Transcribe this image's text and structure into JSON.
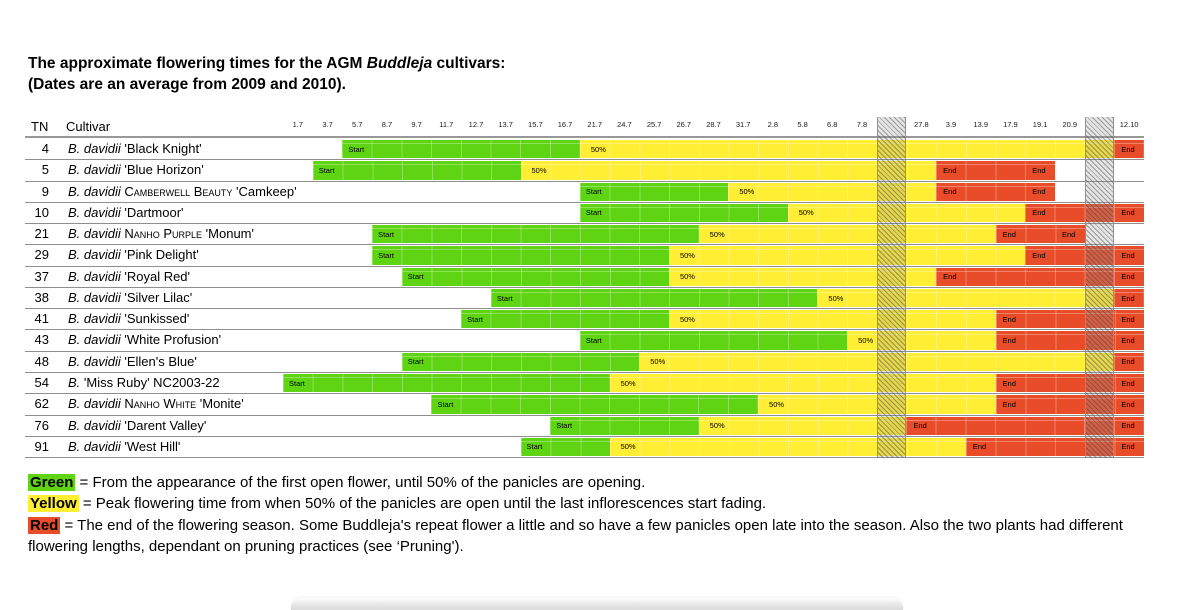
{
  "title": {
    "prefix": "The approximate flowering times for the AGM ",
    "italic": "Buddleja",
    "suffix": " cultivars:",
    "line2": "(Dates are an average from 2009 and 2010)."
  },
  "table_headers": {
    "tn": "TN",
    "cultivar": "Cultivar"
  },
  "colors": {
    "green": "#5ed413",
    "yellow": "#ffee33",
    "red": "#e84c28",
    "grid_line": "#8e8e8e"
  },
  "chart_data": {
    "type": "gantt",
    "title": "The approximate flowering times for the AGM Buddleja cultivars (dates are an average from 2009 and 2010)",
    "x_axis_note": "column dates in day.month format, July to October",
    "columns": [
      "1.7",
      "3.7",
      "5.7",
      "8.7",
      "9.7",
      "11.7",
      "12.7",
      "13.7",
      "15.7",
      "16.7",
      "21.7",
      "24.7",
      "25.7",
      "26.7",
      "28.7",
      "31.7",
      "2.8",
      "5.8",
      "6.8",
      "7.8",
      "",
      "27.8",
      "3.9",
      "13.9",
      "17.9",
      "19.1",
      "20.9",
      "",
      "12.10"
    ],
    "hatch_cols": [
      20,
      27
    ],
    "bar_labels": {
      "start": "Start",
      "half": "50%",
      "end": "End"
    },
    "phases": [
      "green: first open flower to 50% panicles",
      "yellow: peak flowering",
      "red: end of season"
    ],
    "rows": [
      {
        "tn": "4",
        "parts": [
          [
            "B. davidii",
            "i"
          ],
          [
            " 'Black Knight'",
            "n"
          ]
        ],
        "green": [
          2,
          10
        ],
        "yellow": [
          10,
          28
        ],
        "red": [
          28,
          29
        ],
        "end_labels": [
          28
        ]
      },
      {
        "tn": "5",
        "parts": [
          [
            "B. davidii",
            "i"
          ],
          [
            " 'Blue Horizon'",
            "n"
          ]
        ],
        "green": [
          1,
          8
        ],
        "yellow": [
          8,
          22
        ],
        "red": [
          22,
          26
        ],
        "end_labels": [
          22,
          25
        ]
      },
      {
        "tn": "9",
        "parts": [
          [
            "B. davidii",
            "i"
          ],
          [
            " ",
            "n"
          ],
          [
            "Camberwell Beauty",
            "sc"
          ],
          [
            " 'Camkeep'",
            "n"
          ]
        ],
        "green": [
          10,
          15
        ],
        "yellow": [
          15,
          22
        ],
        "red": [
          22,
          26
        ],
        "end_labels": [
          22,
          25
        ]
      },
      {
        "tn": "10",
        "parts": [
          [
            "B. davidii",
            "i"
          ],
          [
            " 'Dartmoor'",
            "n"
          ]
        ],
        "green": [
          10,
          17
        ],
        "yellow": [
          17,
          25
        ],
        "red": [
          25,
          29
        ],
        "end_labels": [
          25,
          28
        ]
      },
      {
        "tn": "21",
        "parts": [
          [
            "B. davidii",
            "i"
          ],
          [
            " ",
            "n"
          ],
          [
            "Nanho Purple",
            "sc"
          ],
          [
            " 'Monum'",
            "n"
          ]
        ],
        "green": [
          3,
          14
        ],
        "yellow": [
          14,
          24
        ],
        "red": [
          24,
          27
        ],
        "end_labels": [
          24,
          26
        ]
      },
      {
        "tn": "29",
        "parts": [
          [
            "B. davidii",
            "i"
          ],
          [
            " 'Pink Delight'",
            "n"
          ]
        ],
        "green": [
          3,
          13
        ],
        "yellow": [
          13,
          25
        ],
        "red": [
          25,
          29
        ],
        "end_labels": [
          25,
          28
        ]
      },
      {
        "tn": "37",
        "parts": [
          [
            "B. davidii",
            "i"
          ],
          [
            " 'Royal Red'",
            "n"
          ]
        ],
        "green": [
          4,
          13
        ],
        "yellow": [
          13,
          22
        ],
        "red": [
          22,
          29
        ],
        "end_labels": [
          22,
          28
        ]
      },
      {
        "tn": "38",
        "parts": [
          [
            "B. davidii",
            "i"
          ],
          [
            " 'Silver Lilac'",
            "n"
          ]
        ],
        "green": [
          7,
          18
        ],
        "yellow": [
          18,
          28
        ],
        "red": [
          28,
          29
        ],
        "end_labels": [
          28
        ]
      },
      {
        "tn": "41",
        "parts": [
          [
            "B. davidii",
            "i"
          ],
          [
            " 'Sunkissed'",
            "n"
          ]
        ],
        "green": [
          6,
          13
        ],
        "yellow": [
          13,
          24
        ],
        "red": [
          24,
          29
        ],
        "end_labels": [
          24,
          28
        ]
      },
      {
        "tn": "43",
        "parts": [
          [
            "B. davidii",
            "i"
          ],
          [
            " 'White Profusion'",
            "n"
          ]
        ],
        "green": [
          10,
          19
        ],
        "yellow": [
          19,
          24
        ],
        "red": [
          24,
          29
        ],
        "end_labels": [
          24,
          28
        ]
      },
      {
        "tn": "48",
        "parts": [
          [
            "B. davidii",
            "i"
          ],
          [
            " 'Ellen's Blue'",
            "n"
          ]
        ],
        "green": [
          4,
          12
        ],
        "yellow": [
          12,
          28
        ],
        "red": [
          28,
          29
        ],
        "end_labels": [
          28
        ]
      },
      {
        "tn": "54",
        "parts": [
          [
            "B.",
            "i"
          ],
          [
            " 'Miss Ruby' NC2003-22",
            "n"
          ]
        ],
        "green": [
          0,
          11
        ],
        "yellow": [
          11,
          24
        ],
        "red": [
          24,
          29
        ],
        "end_labels": [
          24,
          28
        ]
      },
      {
        "tn": "62",
        "parts": [
          [
            "B. davidii",
            "i"
          ],
          [
            " ",
            "n"
          ],
          [
            "Nanho White",
            "sc"
          ],
          [
            " 'Monite'",
            "n"
          ]
        ],
        "green": [
          5,
          16
        ],
        "yellow": [
          16,
          24
        ],
        "red": [
          24,
          29
        ],
        "end_labels": [
          24,
          28
        ]
      },
      {
        "tn": "76",
        "parts": [
          [
            "B. davidii",
            "i"
          ],
          [
            " 'Darent Valley'",
            "n"
          ]
        ],
        "green": [
          9,
          14
        ],
        "yellow": [
          14,
          21
        ],
        "red": [
          21,
          29
        ],
        "end_labels": [
          21,
          28
        ]
      },
      {
        "tn": "91",
        "parts": [
          [
            "B. davidii",
            "i"
          ],
          [
            " 'West Hill'",
            "n"
          ]
        ],
        "green": [
          8,
          11
        ],
        "yellow": [
          11,
          23
        ],
        "red": [
          23,
          29
        ],
        "end_labels": [
          23,
          28
        ]
      }
    ]
  },
  "legend": [
    {
      "key": "Green",
      "color": "#5ed413",
      "text": "= From the appearance of the first open flower, until 50% of the panicles are opening."
    },
    {
      "key": "Yellow",
      "color": "#ffee33",
      "text": "= Peak flowering time from when 50% of the panicles are open until the last inflorescences start fading."
    },
    {
      "key": "Red",
      "color": "#e84c28",
      "text": "= The end of the flowering season. Some Buddleja's repeat flower a little and so have a few panicles open late into the season. Also the two plants had different flowering lengths, dependant on pruning practices (see ‘Pruning')."
    }
  ]
}
